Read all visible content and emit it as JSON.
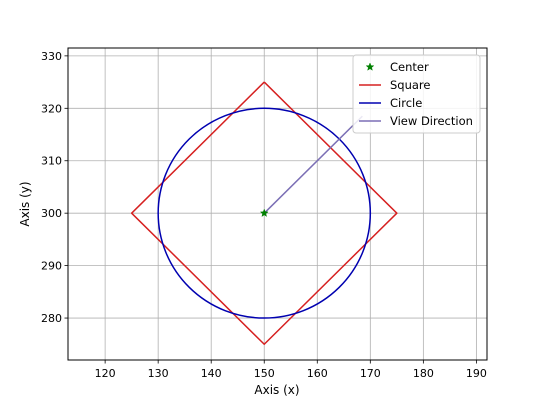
{
  "chart_data": {
    "type": "line",
    "title": "",
    "xlabel": "Axis (x)",
    "ylabel": "Axis (y)",
    "xlim": [
      113,
      192
    ],
    "ylim": [
      272,
      331.5
    ],
    "xticks": [
      120,
      130,
      140,
      150,
      160,
      170,
      180,
      190
    ],
    "yticks": [
      280,
      290,
      300,
      310,
      320,
      330
    ],
    "grid": true,
    "legend_position": "top-right",
    "series": [
      {
        "name": "Center",
        "kind": "marker",
        "marker": "star",
        "color": "#008000",
        "points": [
          [
            150,
            300
          ]
        ]
      },
      {
        "name": "Square",
        "kind": "line",
        "color": "#d62020",
        "points": [
          [
            150,
            325
          ],
          [
            175,
            300
          ],
          [
            150,
            275
          ],
          [
            125,
            300
          ],
          [
            150,
            325
          ]
        ]
      },
      {
        "name": "Circle",
        "kind": "circle",
        "color": "#0000b0",
        "center": [
          150,
          300
        ],
        "radius": 20
      },
      {
        "name": "View Direction",
        "kind": "line",
        "color": "#7b6fb5",
        "points": [
          [
            150,
            300
          ],
          [
            168.5,
            318.5
          ]
        ]
      }
    ]
  }
}
